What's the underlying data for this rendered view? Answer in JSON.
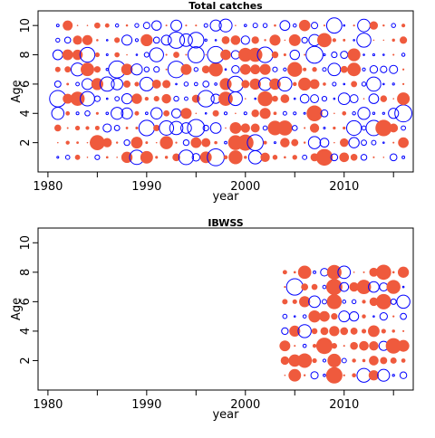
{
  "colors": {
    "positive": "#ef5a3d",
    "negative": "#0000ff",
    "axis": "#000000"
  },
  "chart_data": [
    {
      "type": "scatter",
      "style": "bubble",
      "title": "Total catches",
      "xlabel": "year",
      "ylabel": "Age",
      "xlim": [
        1979,
        2017
      ],
      "ylim": [
        0,
        11
      ],
      "x_ticks": [
        1980,
        1990,
        2000,
        2010
      ],
      "y_ticks": [
        2,
        4,
        6,
        8,
        10
      ],
      "x_ticks_minor": [
        1985,
        1995,
        2005,
        2015
      ],
      "series_start_year": 1981,
      "series_end_year": 2016,
      "ages": [
        1,
        2,
        3,
        4,
        5,
        6,
        7,
        8,
        9,
        10
      ],
      "note": "residual bubble plot: filled red = positive, open blue = negative; size = magnitude"
    },
    {
      "type": "scatter",
      "style": "bubble",
      "title": "IBWSS",
      "xlabel": "year",
      "ylabel": "Age",
      "xlim": [
        1979,
        2017
      ],
      "ylim": [
        0,
        11
      ],
      "x_ticks": [
        1980,
        1990,
        2000,
        2010
      ],
      "y_ticks": [
        2,
        4,
        6,
        8,
        10
      ],
      "x_ticks_minor": [
        1985,
        1995,
        2005,
        2015
      ],
      "series_start_year": 2004,
      "series_end_year": 2016,
      "ages": [
        1,
        2,
        3,
        4,
        5,
        6,
        7,
        8
      ],
      "note": "residual bubble plot: filled red = positive, open blue = negative; size = magnitude"
    }
  ]
}
